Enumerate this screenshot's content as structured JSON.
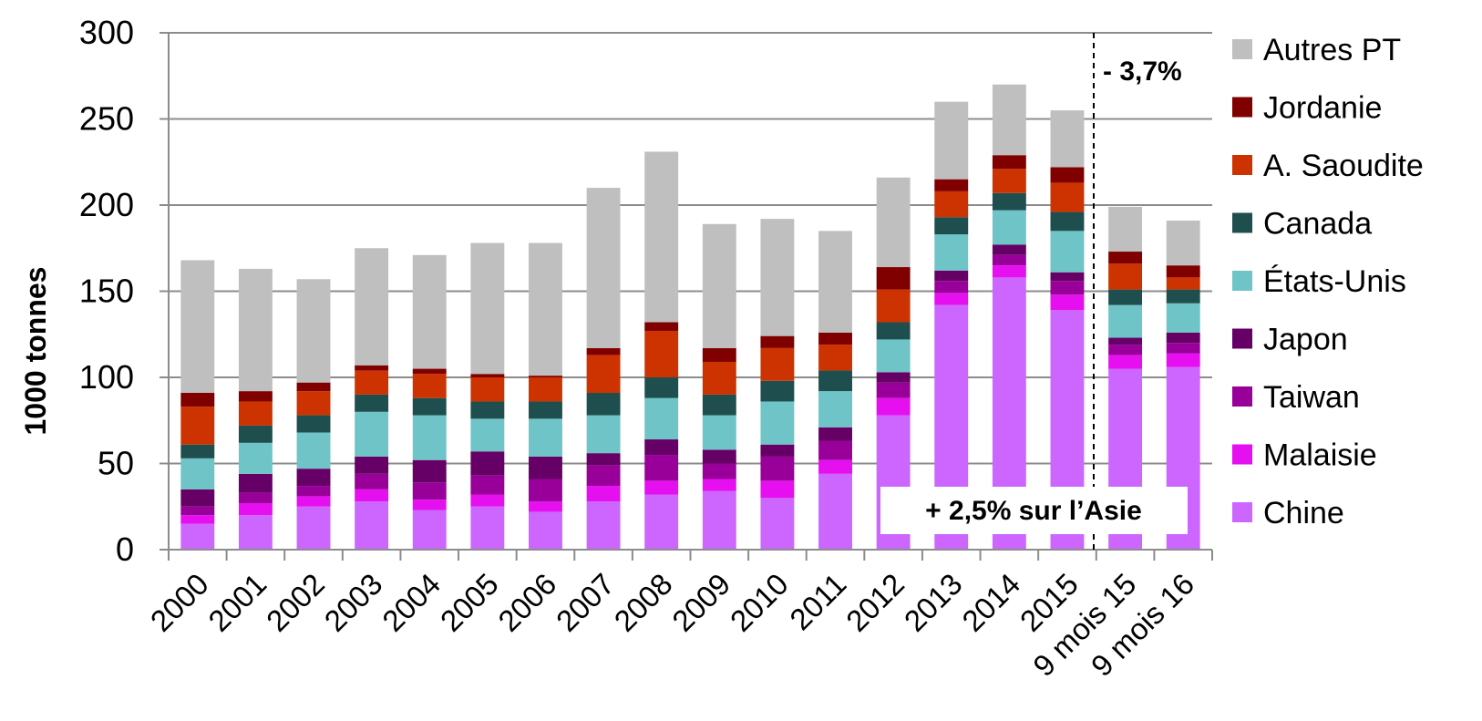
{
  "chart_data": {
    "type": "bar",
    "stacked": true,
    "ylabel": "1000 tonnes",
    "ylim": [
      0,
      300
    ],
    "yticks": [
      0,
      50,
      100,
      150,
      200,
      250,
      300
    ],
    "grid": true,
    "legend_position": "right",
    "categories": [
      "2000",
      "2001",
      "2002",
      "2003",
      "2004",
      "2005",
      "2006",
      "2007",
      "2008",
      "2009",
      "2010",
      "2011",
      "2012",
      "2013",
      "2014",
      "2015",
      "9 mois 15",
      "9 mois 16"
    ],
    "series": [
      {
        "name": "Chine",
        "color": "#cc66ff",
        "values": [
          15,
          20,
          25,
          28,
          23,
          25,
          22,
          28,
          32,
          34,
          30,
          44,
          78,
          142,
          158,
          139,
          105,
          106
        ]
      },
      {
        "name": "Malaisie",
        "color": "#e60ff0",
        "values": [
          5,
          7,
          6,
          7,
          6,
          7,
          6,
          9,
          8,
          7,
          10,
          8,
          10,
          7,
          7,
          9,
          8,
          8
        ]
      },
      {
        "name": "Taiwan",
        "color": "#990099",
        "values": [
          5,
          6,
          6,
          9,
          10,
          11,
          13,
          12,
          15,
          9,
          14,
          11,
          9,
          7,
          6,
          8,
          6,
          6
        ]
      },
      {
        "name": "Japon",
        "color": "#660066",
        "values": [
          10,
          11,
          10,
          10,
          13,
          14,
          13,
          7,
          9,
          8,
          7,
          8,
          6,
          6,
          6,
          5,
          4,
          6
        ]
      },
      {
        "name": "États-Unis",
        "color": "#6ec4c6",
        "values": [
          18,
          18,
          21,
          26,
          26,
          19,
          22,
          22,
          24,
          20,
          25,
          21,
          19,
          21,
          20,
          24,
          19,
          17
        ]
      },
      {
        "name": "Canada",
        "color": "#1f4e4e",
        "values": [
          8,
          10,
          10,
          10,
          10,
          10,
          10,
          13,
          12,
          12,
          12,
          12,
          10,
          10,
          10,
          11,
          9,
          8
        ]
      },
      {
        "name": "A. Saoudite",
        "color": "#cc3300",
        "values": [
          22,
          14,
          14,
          14,
          14,
          14,
          14,
          22,
          27,
          19,
          19,
          15,
          19,
          15,
          14,
          17,
          15,
          7
        ]
      },
      {
        "name": "Jordanie",
        "color": "#800000",
        "values": [
          8,
          6,
          5,
          3,
          3,
          2,
          1,
          4,
          5,
          8,
          7,
          7,
          13,
          7,
          8,
          9,
          7,
          7
        ]
      },
      {
        "name": "Autres PT",
        "color": "#bfbfbf",
        "values": [
          77,
          71,
          60,
          68,
          66,
          76,
          77,
          93,
          99,
          72,
          68,
          59,
          52,
          45,
          41,
          33,
          26,
          26
        ]
      }
    ],
    "annotations": [
      "- 3,7%",
      "+ 2,5% sur l’Asie"
    ]
  }
}
